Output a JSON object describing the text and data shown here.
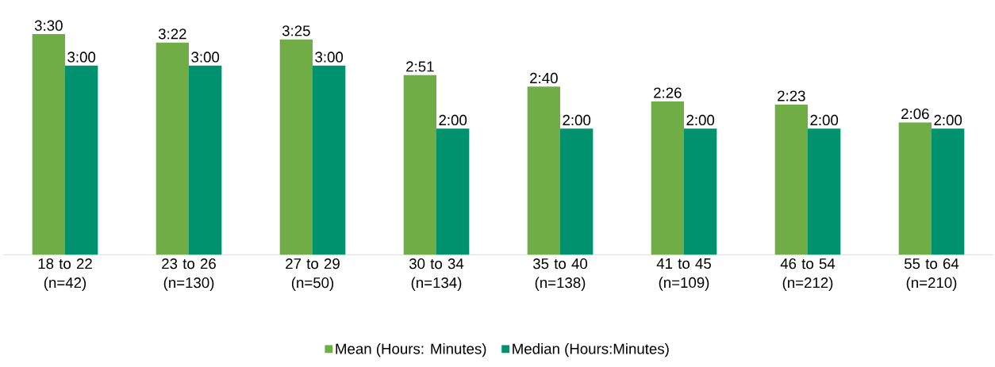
{
  "chart_data": {
    "type": "bar",
    "categories": [
      "18 to 22 (n=42)",
      "23 to 26 (n=130)",
      "27 to 29 (n=50)",
      "30 to 34 (n=134)",
      "35 to 40 (n=138)",
      "41 to 45 (n=109)",
      "46 to 54 (n=212)",
      "55 to 64 (n=210)"
    ],
    "series": [
      {
        "name": "Mean (Hours: Minutes)",
        "color": "#70ad47",
        "values": [
          3.5,
          3.3667,
          3.4167,
          2.85,
          2.6667,
          2.4333,
          2.3833,
          2.1
        ],
        "value_labels": [
          "3:30",
          "3:22",
          "3:25",
          "2:51",
          "2:40",
          "2:26",
          "2:23",
          "2:06"
        ]
      },
      {
        "name": "Median (Hours:Minutes)",
        "color": "#00916e",
        "values": [
          3,
          3,
          3,
          2,
          2,
          2,
          2,
          2
        ],
        "value_labels": [
          "3:00",
          "3:00",
          "3:00",
          "2:00",
          "2:00",
          "2:00",
          "2:00",
          "2:00"
        ]
      }
    ],
    "legend": "bottom"
  }
}
